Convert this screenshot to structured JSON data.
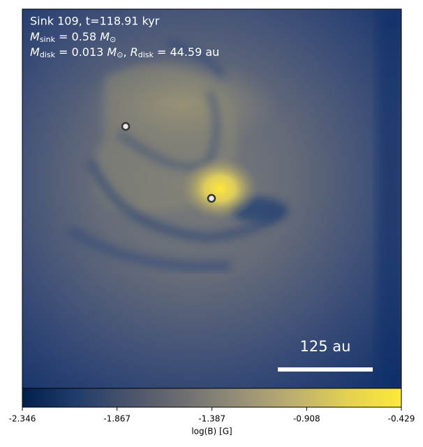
{
  "chart_data": {
    "type": "image",
    "title": "Sink 109, t=118.91 kyr",
    "annotations": [
      [
        {
          "text": "M",
          "italic": true
        },
        {
          "text": "sink",
          "sub": true
        },
        {
          "text": " = 0.58 "
        },
        {
          "text": "M",
          "italic": true
        },
        {
          "text": "⊙",
          "sub": true
        }
      ],
      [
        {
          "text": "M",
          "italic": true
        },
        {
          "text": "disk",
          "sub": true
        },
        {
          "text": " = 0.013 "
        },
        {
          "text": "M",
          "italic": true
        },
        {
          "text": "⊙",
          "sub": true
        },
        {
          "text": ", "
        },
        {
          "text": "R",
          "italic": true
        },
        {
          "text": "disk",
          "sub": true
        },
        {
          "text": " = 44.59 au"
        }
      ]
    ],
    "scale_bar": {
      "label": "125 au"
    },
    "colorbar": {
      "label": "log(B) [G]",
      "lim": [
        -2.346,
        -0.429
      ],
      "ticks": [
        -2.346,
        -1.867,
        -1.387,
        -0.908,
        -0.429
      ],
      "colors": [
        "#00204c",
        "#213d6b",
        "#4c546c",
        "#6f6f71",
        "#958f78",
        "#bcaf6f",
        "#e3d150",
        "#fee838"
      ]
    }
  }
}
